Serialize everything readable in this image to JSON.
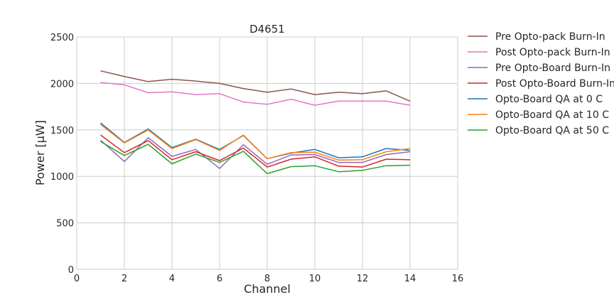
{
  "chart_data": {
    "type": "line",
    "title": "D4651",
    "xlabel": "Channel",
    "ylabel": "Power [μW]",
    "xlim": [
      0,
      16
    ],
    "ylim": [
      0,
      2500
    ],
    "xticks": [
      0,
      2,
      4,
      6,
      8,
      10,
      12,
      14,
      16
    ],
    "yticks": [
      0,
      500,
      1000,
      1500,
      2000,
      2500
    ],
    "grid": true,
    "legend_position": "outside-right",
    "x": [
      1,
      2,
      3,
      4,
      5,
      6,
      7,
      8,
      9,
      10,
      11,
      12,
      13,
      14
    ],
    "series": [
      {
        "name": "Pre Opto-pack Burn-In",
        "color": "#8c564b",
        "values": [
          2135,
          2075,
          2020,
          2045,
          2025,
          2000,
          1945,
          1905,
          1940,
          1880,
          1905,
          1890,
          1920,
          1810
        ]
      },
      {
        "name": "Post Opto-pack Burn-In",
        "color": "#e377c2",
        "values": [
          2010,
          1985,
          1900,
          1910,
          1880,
          1890,
          1800,
          1775,
          1830,
          1765,
          1810,
          1810,
          1810,
          1765
        ]
      },
      {
        "name": "Pre Opto-Board Burn-In",
        "color": "#9467bd",
        "values": [
          1390,
          1160,
          1415,
          1215,
          1290,
          1085,
          1340,
          1130,
          1230,
          1235,
          1150,
          1150,
          1235,
          1265
        ]
      },
      {
        "name": "Post Opto-Board Burn-In",
        "color": "#d62728",
        "values": [
          1445,
          1255,
          1385,
          1180,
          1265,
          1170,
          1305,
          1100,
          1185,
          1210,
          1110,
          1100,
          1185,
          1180
        ]
      },
      {
        "name": "Opto-Board QA at 0 C",
        "color": "#1f77b4",
        "values": [
          1575,
          1365,
          1510,
          1310,
          1400,
          1290,
          1440,
          1190,
          1250,
          1290,
          1200,
          1210,
          1300,
          1280
        ]
      },
      {
        "name": "Opto-Board QA at 10 C",
        "color": "#ff7f0e",
        "values": [
          1560,
          1360,
          1500,
          1300,
          1395,
          1280,
          1445,
          1190,
          1255,
          1260,
          1175,
          1180,
          1265,
          1300
        ]
      },
      {
        "name": "Opto-Board QA at 50 C",
        "color": "#2ca02c",
        "values": [
          1375,
          1225,
          1345,
          1135,
          1240,
          1150,
          1270,
          1030,
          1105,
          1115,
          1050,
          1065,
          1115,
          1120
        ]
      }
    ]
  }
}
